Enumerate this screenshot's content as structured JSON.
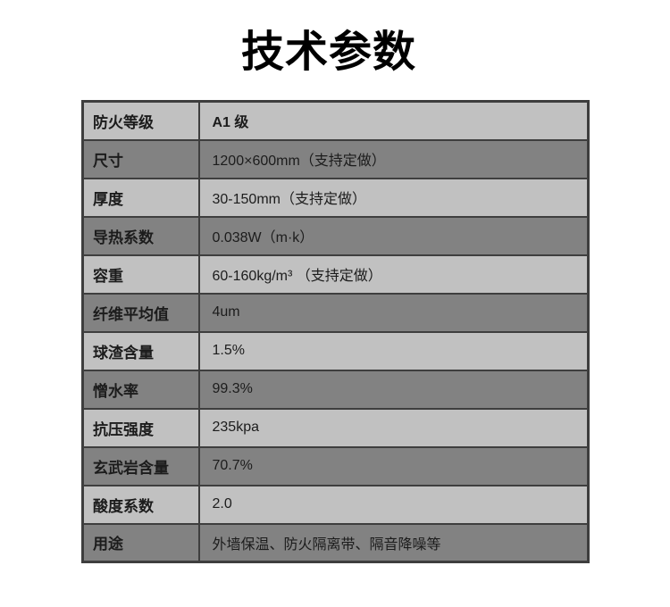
{
  "page": {
    "title": "技术参数"
  },
  "colors": {
    "row_light": "#c1c1c1",
    "row_dark": "#828282",
    "border": "#3e3e3e",
    "text": "#1c1c1c",
    "title": "#000000"
  },
  "table": {
    "rows": [
      {
        "label": "防火等级",
        "value": "A1 级"
      },
      {
        "label": "尺寸",
        "value": "1200×600mm（支持定做）"
      },
      {
        "label": "厚度",
        "value": "30-150mm（支持定做）"
      },
      {
        "label": "导热系数",
        "value": "0.038W（m·k）"
      },
      {
        "label": "容重",
        "value": "60-160kg/m³ （支持定做）"
      },
      {
        "label": "纤维平均值",
        "value": "4um"
      },
      {
        "label": "球渣含量",
        "value": "1.5%"
      },
      {
        "label": "憎水率",
        "value": "99.3%"
      },
      {
        "label": "抗压强度",
        "value": "235kpa"
      },
      {
        "label": "玄武岩含量",
        "value": "70.7%"
      },
      {
        "label": "酸度系数",
        "value": "2.0"
      },
      {
        "label": "用途",
        "value": "外墙保温、防火隔离带、隔音降噪等"
      }
    ]
  }
}
